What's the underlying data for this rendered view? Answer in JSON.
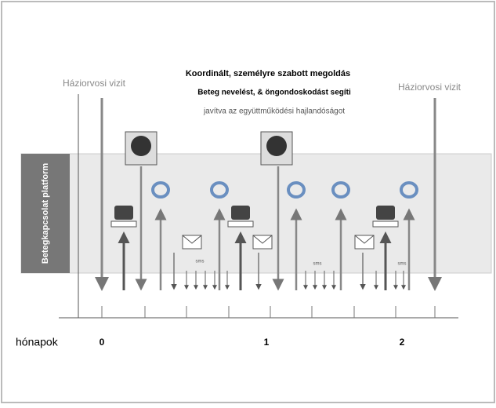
{
  "header": {
    "title": "Koordinált, személyre szabott megoldás",
    "line2": "Beteg nevelést, & öngondoskodást segíti",
    "line3": "javítva az együttműködési hajlandóságot"
  },
  "visits": {
    "left": "Háziorvosi vizit",
    "right": "Háziorvosi vizit"
  },
  "platform": {
    "label": "Betegkapcsolat platform"
  },
  "axis": {
    "label": "hónapok",
    "ticks": [
      "0",
      "1",
      "2"
    ]
  },
  "sms": [
    "sms",
    "sms",
    "sms"
  ]
}
